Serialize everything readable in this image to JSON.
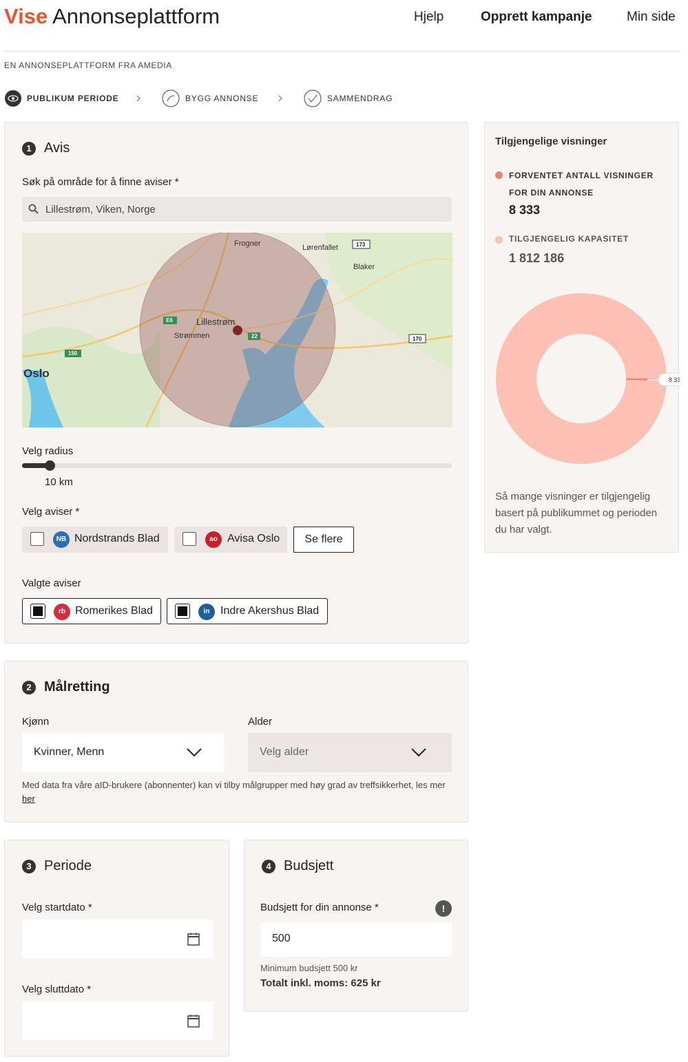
{
  "header": {
    "brand": "Vise",
    "product": "Annonseplattform",
    "nav": [
      "Hjelp",
      "Opprett kampanje",
      "Min side"
    ],
    "tagline": "EN ANNONSEPLATTFORM FRA AMEDIA"
  },
  "steps": [
    "PUBLIKUM PERIODE",
    "BYGG ANNONSE",
    "SAMMENDRAG"
  ],
  "avis": {
    "number": "1",
    "title": "Avis",
    "search_label": "Søk på område for å finne aviser *",
    "search_value": "Lillestrøm, Viken, Norge",
    "map_labels": [
      "Frogner",
      "Lørenfallet",
      "173",
      "Blaker",
      "E6",
      "Lillestrøm",
      "Strømmen",
      "22",
      "170",
      "150",
      "Oslo"
    ],
    "radius_label": "Velg radius",
    "radius_value": "10 km",
    "select_label": "Velg aviser *",
    "options": [
      {
        "logo": "NB",
        "name": "Nordstrands Blad"
      },
      {
        "logo": "ao",
        "name": "Avisa Oslo"
      }
    ],
    "more": "Se flere",
    "selected_label": "Valgte aviser",
    "selected": [
      {
        "logo": "rb",
        "name": "Romerikes Blad"
      },
      {
        "logo": "in",
        "name": "Indre Akershus Blad"
      }
    ]
  },
  "malretting": {
    "number": "2",
    "title": "Målretting",
    "gender_label": "Kjønn",
    "gender_value": "Kvinner, Menn",
    "age_label": "Alder",
    "age_placeholder": "Velg alder",
    "note": "Med data fra våre aID-brukere (abonnenter) kan vi tilby målgrupper med høy grad av treffsikkerhet, les mer ",
    "link": "her"
  },
  "periode": {
    "number": "3",
    "title": "Periode",
    "start_label": "Velg startdato *",
    "end_label": "Velg sluttdato *"
  },
  "budsjett": {
    "number": "4",
    "title": "Budsjett",
    "label": "Budsjett for din annonse *",
    "value": "500",
    "info": "!",
    "min": "Minimum budsjett 500 kr",
    "total": "Totalt inkl. moms: 625 kr"
  },
  "sidebar": {
    "title": "Tilgjengelige visninger",
    "chart": {
      "type": "pie",
      "series": [
        {
          "name": "FORVENTET ANTALL VISNINGER FOR DIN ANNONSE",
          "value": 8333,
          "value_label": "8 333",
          "color": "#f08070"
        },
        {
          "name": "TILGJENGELIG KAPASITET",
          "value": 1812186,
          "value_label": "1 812 186",
          "color": "#fcc1b4"
        }
      ]
    },
    "note": "Så mange visninger er tilgjengelig basert på publikummet og perioden du har valgt."
  }
}
